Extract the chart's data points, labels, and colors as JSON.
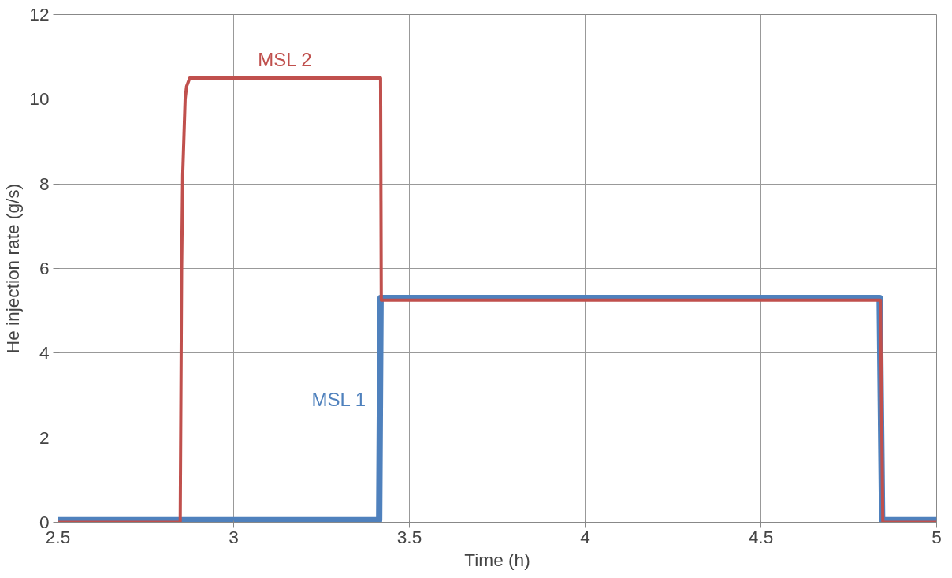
{
  "chart_data": {
    "type": "line",
    "xlabel": "Time (h)",
    "ylabel": "He injection rate (g/s)",
    "xlim": [
      2.5,
      5
    ],
    "ylim": [
      0,
      12
    ],
    "xticks": [
      2.5,
      3,
      3.5,
      4,
      4.5,
      5
    ],
    "yticks": [
      0,
      2,
      4,
      6,
      8,
      10,
      12
    ],
    "grid": true,
    "marker": "none",
    "line_style": "solid",
    "series": [
      {
        "name": "MSL 1",
        "color": "#4f81bd",
        "x": [
          2.5,
          3.414,
          3.418,
          4.838,
          4.845,
          5
        ],
        "values": [
          0.05,
          0.05,
          5.3,
          5.3,
          0.05,
          0.05
        ]
      },
      {
        "name": "MSL 2",
        "color": "#c0504d",
        "x": [
          2.5,
          2.848,
          2.852,
          2.855,
          2.862,
          2.866,
          2.875,
          3.418,
          3.42,
          4.84,
          4.847,
          5
        ],
        "values": [
          0,
          0,
          6,
          8.2,
          10,
          10.3,
          10.5,
          10.5,
          5.25,
          5.25,
          0,
          0
        ]
      }
    ]
  }
}
